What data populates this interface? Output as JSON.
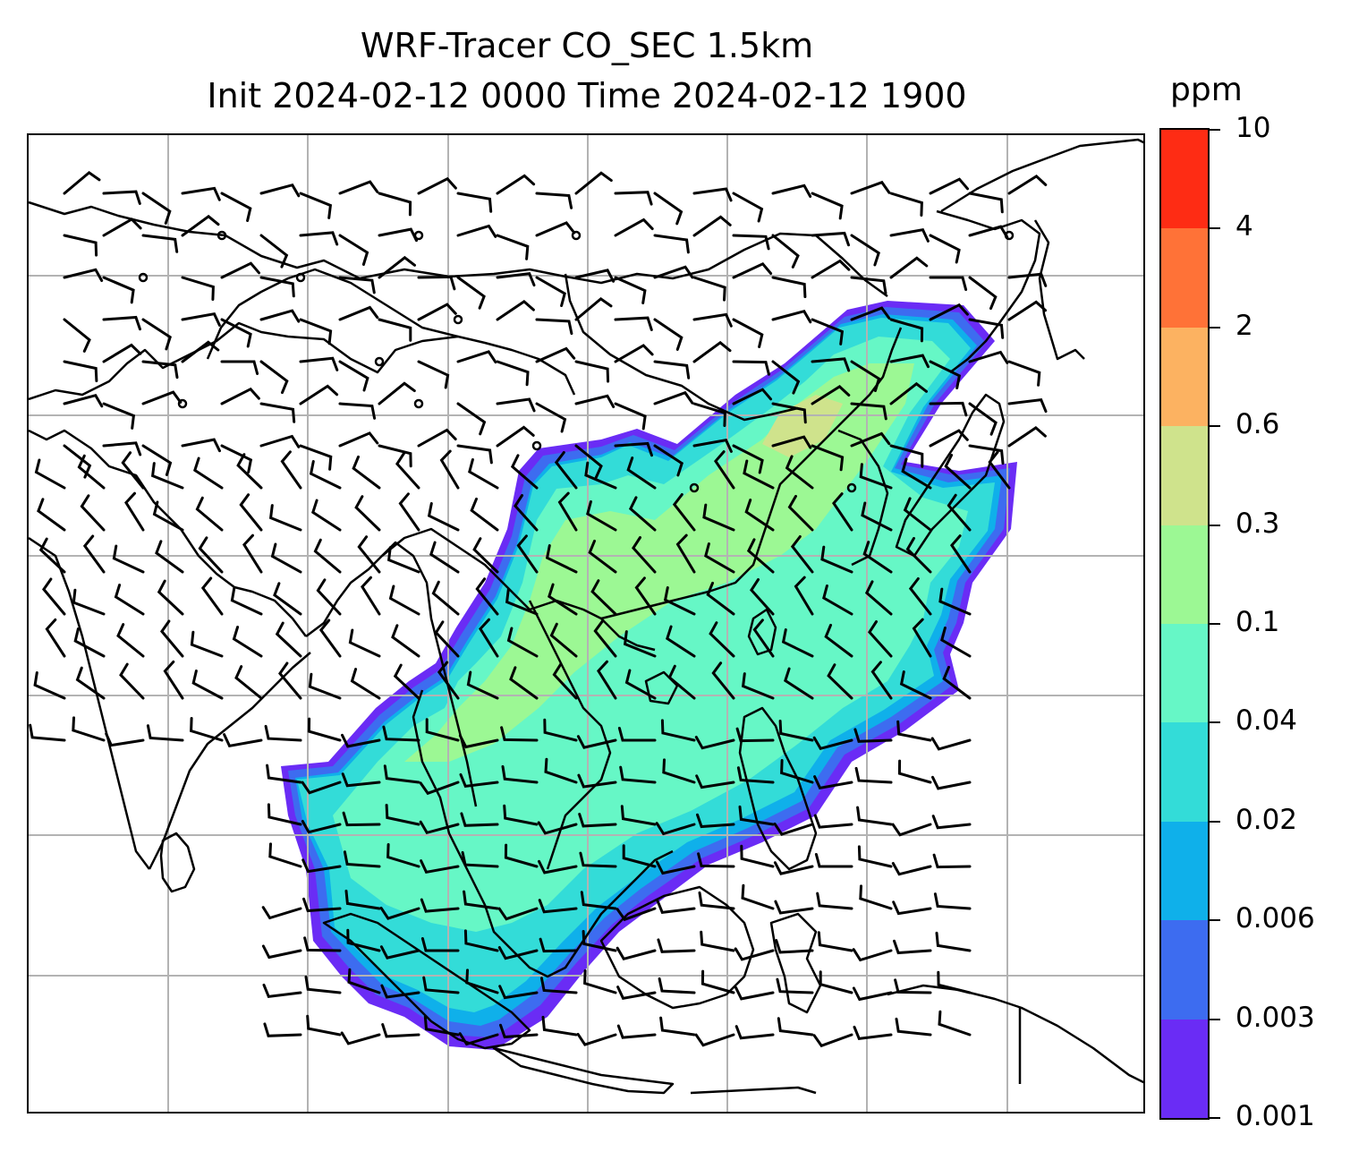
{
  "title": {
    "line1": "WRF-Tracer CO_SEC 1.5km",
    "line2": "Init 2024-02-12 0000 Time 2024-02-12 1900"
  },
  "colorbar": {
    "unit": "ppm",
    "levels": [
      "0.001",
      "0.003",
      "0.006",
      "0.02",
      "0.04",
      "0.1",
      "0.3",
      "0.6",
      "2",
      "4",
      "10"
    ],
    "colors": [
      "#6a2cf5",
      "#3d6cf0",
      "#0fb0ea",
      "#33dcd8",
      "#66f7c6",
      "#9cf894",
      "#cfe38c",
      "#fcb261",
      "#ff7237",
      "#fe2c14"
    ]
  },
  "map": {
    "variable": "CO_SEC tracer concentration",
    "overlay": "wind barbs",
    "graticule": true,
    "line_color": "#000000",
    "grid_color": "#b3b3b3"
  }
}
